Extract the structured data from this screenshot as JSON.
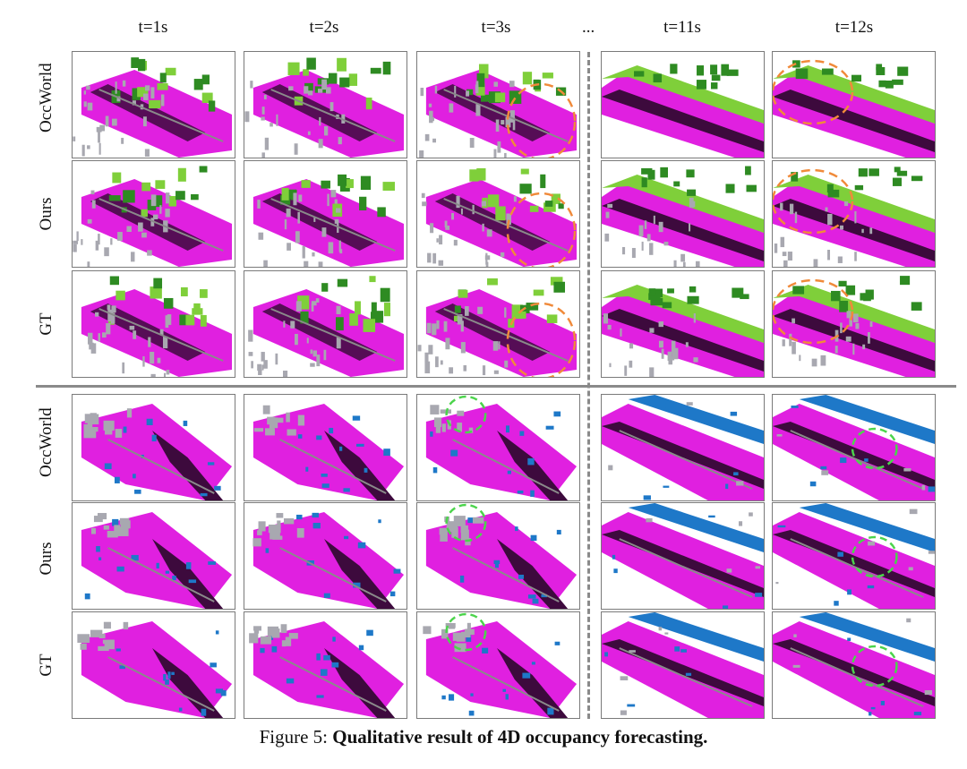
{
  "figure": {
    "caption_prefix": "Figure 5:",
    "caption_title": "Qualitative result of 4D occupancy forecasting.",
    "column_headers": [
      "t=1s",
      "t=2s",
      "t=3s",
      "t=11s",
      "t=12s"
    ],
    "ellipsis": "...",
    "row_labels_top": [
      "OccWorld",
      "Ours",
      "GT"
    ],
    "row_labels_bottom": [
      "OccWorld",
      "Ours",
      "GT"
    ]
  },
  "colors": {
    "drivable": "#e020e0",
    "vegetation": "#2e8b22",
    "terrain": "#7fcf3a",
    "manmade": "#a8a8b0",
    "sidewalk": "#3d0a3d",
    "car": "#1e78c8",
    "highlight_orange": "#f08a3a",
    "highlight_green": "#4cd44c",
    "lane": "#8a8a8a"
  }
}
